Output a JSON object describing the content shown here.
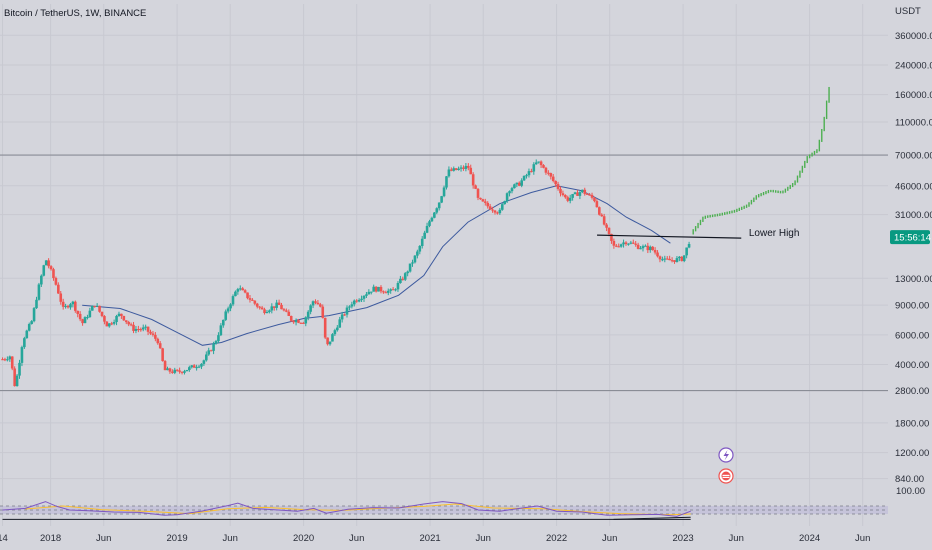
{
  "header": {
    "symbol": "Bitcoin / TetherUS, 1W, BINANCE"
  },
  "price_axis": {
    "currency_label": "USDT",
    "ticks": [
      {
        "label": "360000.00",
        "value": 360000
      },
      {
        "label": "240000.00",
        "value": 240000
      },
      {
        "label": "160000.00",
        "value": 160000
      },
      {
        "label": "110000.00",
        "value": 110000
      },
      {
        "label": "70000.00",
        "value": 70000
      },
      {
        "label": "46000.00",
        "value": 46000
      },
      {
        "label": "31000.00",
        "value": 31000
      },
      {
        "label": "13000.00",
        "value": 13000
      },
      {
        "label": "9000.00",
        "value": 9000
      },
      {
        "label": "6000.00",
        "value": 6000
      },
      {
        "label": "4000.00",
        "value": 4000
      },
      {
        "label": "2800.00",
        "value": 2800
      },
      {
        "label": "1800.00",
        "value": 1800
      },
      {
        "label": "1200.00",
        "value": 1200
      },
      {
        "label": "840.00",
        "value": 840
      }
    ],
    "last_price_badge": "15:56:14",
    "last_price_value": 22800
  },
  "time_axis": {
    "ticks": [
      {
        "label": "14",
        "t": 2017.62
      },
      {
        "label": "2018",
        "t": 2018.0
      },
      {
        "label": "Jun",
        "t": 2018.42
      },
      {
        "label": "2019",
        "t": 2019.0
      },
      {
        "label": "Jun",
        "t": 2019.42
      },
      {
        "label": "2020",
        "t": 2020.0
      },
      {
        "label": "Jun",
        "t": 2020.42
      },
      {
        "label": "2021",
        "t": 2021.0
      },
      {
        "label": "Jun",
        "t": 2021.42
      },
      {
        "label": "2022",
        "t": 2022.0
      },
      {
        "label": "Jun",
        "t": 2022.42
      },
      {
        "label": "2023",
        "t": 2023.0
      },
      {
        "label": "Jun",
        "t": 2023.42
      },
      {
        "label": "2024",
        "t": 2024.0
      },
      {
        "label": "Jun",
        "t": 2024.42
      }
    ]
  },
  "annotations": {
    "lower_high_label": "Lower High",
    "lower_high_price": 22800
  },
  "horizontal_levels": [
    70000,
    2800
  ],
  "rsi_axis": {
    "top_label": "100.00"
  },
  "colors": {
    "up": "#26a69a",
    "down": "#ef5350",
    "projection": "#4caf50",
    "moving_average": "#3d5a9e",
    "rsi_line": "#7e57c2",
    "rsi_ma": "#fbc02d",
    "rsi_band": "#b9b6d9",
    "level_line": "#8a8d96",
    "badge": "#089981"
  },
  "icons": [
    "lightning-icon",
    "flag-icon"
  ],
  "chart_data": {
    "type": "candlestick",
    "title": "Bitcoin / TetherUS, 1W, BINANCE",
    "y_scale": "log",
    "ylim": [
      700,
      420000
    ],
    "x_range": [
      2017.6,
      2024.62
    ],
    "price_path": [
      [
        2017.62,
        4300
      ],
      [
        2017.68,
        4500
      ],
      [
        2017.72,
        2900
      ],
      [
        2017.78,
        5600
      ],
      [
        2017.85,
        7200
      ],
      [
        2017.9,
        11000
      ],
      [
        2017.96,
        17000
      ],
      [
        2018.0,
        14500
      ],
      [
        2018.05,
        11500
      ],
      [
        2018.1,
        8500
      ],
      [
        2018.17,
        9500
      ],
      [
        2018.25,
        7000
      ],
      [
        2018.35,
        9200
      ],
      [
        2018.45,
        6800
      ],
      [
        2018.55,
        8000
      ],
      [
        2018.65,
        6500
      ],
      [
        2018.75,
        6500
      ],
      [
        2018.85,
        5500
      ],
      [
        2018.9,
        3700
      ],
      [
        2019.0,
        3600
      ],
      [
        2019.1,
        3800
      ],
      [
        2019.2,
        4100
      ],
      [
        2019.3,
        5400
      ],
      [
        2019.4,
        8600
      ],
      [
        2019.48,
        11500
      ],
      [
        2019.55,
        10200
      ],
      [
        2019.68,
        8300
      ],
      [
        2019.8,
        9100
      ],
      [
        2019.9,
        7400
      ],
      [
        2020.0,
        7200
      ],
      [
        2020.08,
        9700
      ],
      [
        2020.14,
        8700
      ],
      [
        2020.18,
        5000
      ],
      [
        2020.28,
        7200
      ],
      [
        2020.38,
        9300
      ],
      [
        2020.55,
        11300
      ],
      [
        2020.7,
        10800
      ],
      [
        2020.8,
        13500
      ],
      [
        2020.9,
        18500
      ],
      [
        2021.0,
        29000
      ],
      [
        2021.08,
        38000
      ],
      [
        2021.14,
        56000
      ],
      [
        2021.25,
        58000
      ],
      [
        2021.3,
        60000
      ],
      [
        2021.38,
        38000
      ],
      [
        2021.45,
        35000
      ],
      [
        2021.55,
        32000
      ],
      [
        2021.62,
        44000
      ],
      [
        2021.7,
        47000
      ],
      [
        2021.78,
        55000
      ],
      [
        2021.85,
        64000
      ],
      [
        2021.92,
        56000
      ],
      [
        2022.0,
        46000
      ],
      [
        2022.08,
        38000
      ],
      [
        2022.2,
        43000
      ],
      [
        2022.3,
        38000
      ],
      [
        2022.36,
        29000
      ],
      [
        2022.45,
        20000
      ],
      [
        2022.55,
        21500
      ],
      [
        2022.65,
        20000
      ],
      [
        2022.75,
        19500
      ],
      [
        2022.85,
        16500
      ],
      [
        2022.95,
        16800
      ],
      [
        2023.0,
        17000
      ],
      [
        2023.06,
        22800
      ]
    ],
    "projection_path": [
      [
        2023.08,
        24000
      ],
      [
        2023.18,
        30000
      ],
      [
        2023.3,
        31000
      ],
      [
        2023.42,
        32500
      ],
      [
        2023.52,
        35000
      ],
      [
        2023.6,
        40000
      ],
      [
        2023.7,
        43000
      ],
      [
        2023.8,
        42000
      ],
      [
        2023.9,
        48000
      ],
      [
        2024.0,
        68000
      ],
      [
        2024.08,
        75000
      ],
      [
        2024.13,
        110000
      ],
      [
        2024.17,
        175000
      ]
    ],
    "moving_average": [
      [
        2018.25,
        9000
      ],
      [
        2018.55,
        8600
      ],
      [
        2018.8,
        7400
      ],
      [
        2019.0,
        6200
      ],
      [
        2019.2,
        5200
      ],
      [
        2019.35,
        5400
      ],
      [
        2019.55,
        6100
      ],
      [
        2019.8,
        6900
      ],
      [
        2020.0,
        7500
      ],
      [
        2020.2,
        7800
      ],
      [
        2020.5,
        8700
      ],
      [
        2020.75,
        10300
      ],
      [
        2020.95,
        13500
      ],
      [
        2021.1,
        20000
      ],
      [
        2021.3,
        28000
      ],
      [
        2021.55,
        36000
      ],
      [
        2021.8,
        42000
      ],
      [
        2022.0,
        46000
      ],
      [
        2022.2,
        43000
      ],
      [
        2022.4,
        36000
      ],
      [
        2022.55,
        30000
      ],
      [
        2022.75,
        25000
      ],
      [
        2022.9,
        21000
      ]
    ],
    "rsi": {
      "ylim": [
        0,
        100
      ],
      "upper_band": 70,
      "lower_band": 30,
      "series": [
        [
          2017.62,
          50
        ],
        [
          2017.8,
          58
        ],
        [
          2017.96,
          92
        ],
        [
          2018.05,
          68
        ],
        [
          2018.15,
          50
        ],
        [
          2018.3,
          46
        ],
        [
          2018.5,
          40
        ],
        [
          2018.7,
          38
        ],
        [
          2018.9,
          24
        ],
        [
          2019.0,
          26
        ],
        [
          2019.2,
          45
        ],
        [
          2019.4,
          72
        ],
        [
          2019.48,
          84
        ],
        [
          2019.6,
          58
        ],
        [
          2019.8,
          50
        ],
        [
          2019.95,
          44
        ],
        [
          2020.08,
          58
        ],
        [
          2020.18,
          34
        ],
        [
          2020.35,
          54
        ],
        [
          2020.55,
          62
        ],
        [
          2020.75,
          60
        ],
        [
          2020.95,
          80
        ],
        [
          2021.1,
          92
        ],
        [
          2021.25,
          82
        ],
        [
          2021.38,
          50
        ],
        [
          2021.55,
          44
        ],
        [
          2021.75,
          62
        ],
        [
          2021.85,
          70
        ],
        [
          2022.0,
          44
        ],
        [
          2022.2,
          40
        ],
        [
          2022.4,
          24
        ],
        [
          2022.6,
          26
        ],
        [
          2022.8,
          28
        ],
        [
          2022.95,
          18
        ],
        [
          2023.06,
          44
        ]
      ],
      "ma": [
        [
          2017.8,
          55
        ],
        [
          2018.1,
          70
        ],
        [
          2018.4,
          52
        ],
        [
          2018.8,
          42
        ],
        [
          2019.1,
          32
        ],
        [
          2019.4,
          56
        ],
        [
          2019.7,
          63
        ],
        [
          2020.0,
          52
        ],
        [
          2020.3,
          48
        ],
        [
          2020.6,
          58
        ],
        [
          2020.95,
          68
        ],
        [
          2021.2,
          80
        ],
        [
          2021.5,
          60
        ],
        [
          2021.9,
          56
        ],
        [
          2022.2,
          42
        ],
        [
          2022.5,
          32
        ],
        [
          2022.9,
          26
        ],
        [
          2023.06,
          30
        ]
      ],
      "trendlines": [
        [
          [
            2017.62,
            3
          ],
          [
            2023.06,
            3
          ]
        ],
        [
          [
            2022.45,
            3
          ],
          [
            2023.06,
            14
          ]
        ]
      ]
    }
  }
}
